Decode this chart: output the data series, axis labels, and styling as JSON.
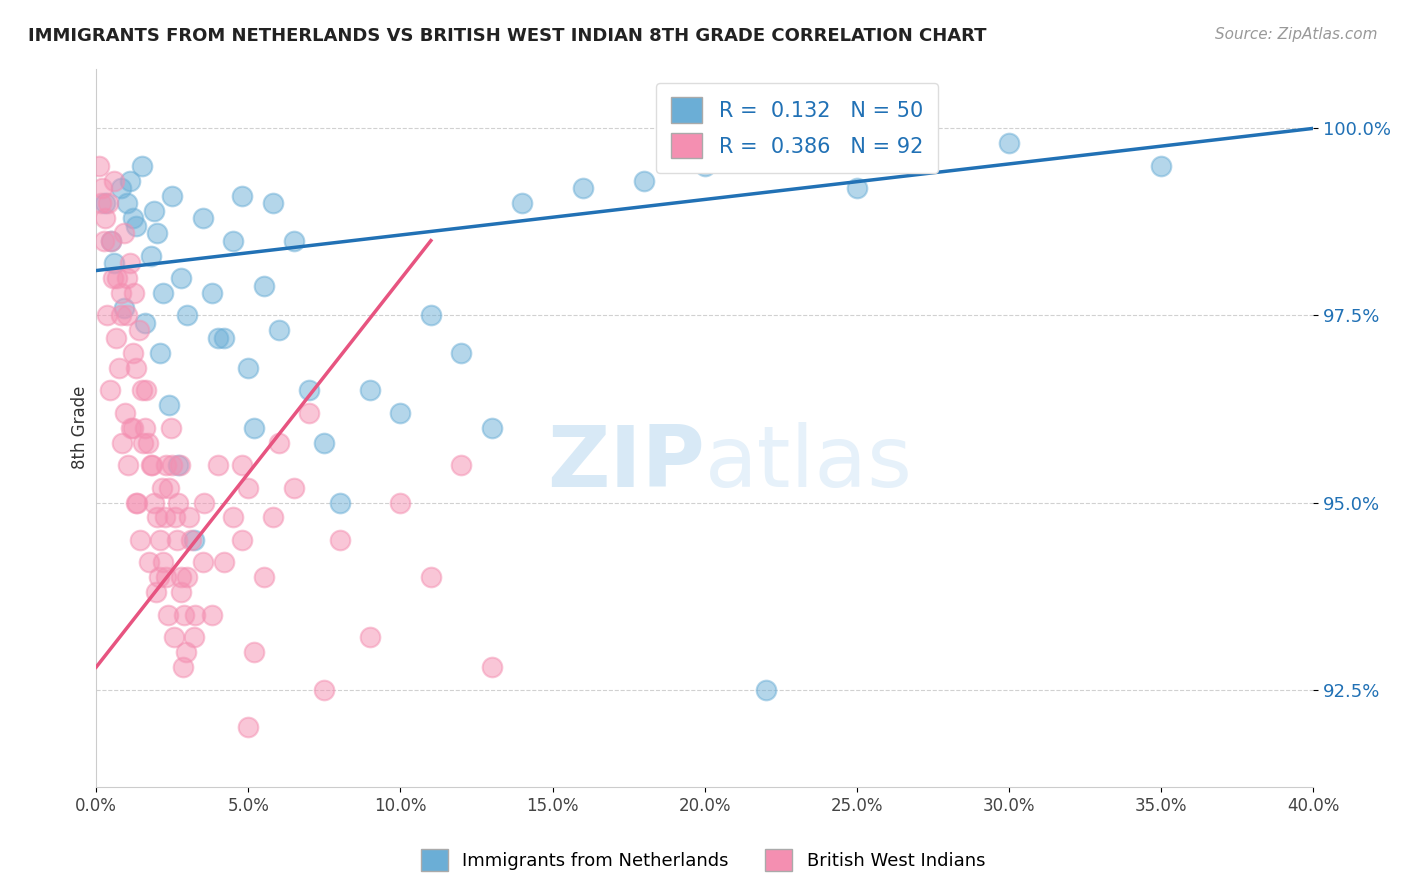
{
  "title": "IMMIGRANTS FROM NETHERLANDS VS BRITISH WEST INDIAN 8TH GRADE CORRELATION CHART",
  "source": "Source: ZipAtlas.com",
  "ylabel": "8th Grade",
  "y_ticks": [
    92.5,
    95.0,
    97.5,
    100.0
  ],
  "x_min": 0.0,
  "x_max": 40.0,
  "y_min": 91.2,
  "y_max": 100.8,
  "blue_R": 0.132,
  "blue_N": 50,
  "pink_R": 0.386,
  "pink_N": 92,
  "blue_color": "#6baed6",
  "pink_color": "#f48fb1",
  "blue_line_color": "#2171b5",
  "pink_line_color": "#e75480",
  "watermark_zip": "ZIP",
  "watermark_atlas": "atlas",
  "legend_label_blue": "Immigrants from Netherlands",
  "legend_label_pink": "British West Indians",
  "blue_scatter_x": [
    0.5,
    0.8,
    1.0,
    1.2,
    1.5,
    1.8,
    2.0,
    2.2,
    2.5,
    2.8,
    3.0,
    3.5,
    4.0,
    4.5,
    5.0,
    5.5,
    6.0,
    7.0,
    8.0,
    10.0,
    12.0,
    14.0,
    18.0,
    20.0,
    25.0,
    30.0,
    0.3,
    0.6,
    0.9,
    1.1,
    1.3,
    1.6,
    1.9,
    2.1,
    2.4,
    2.7,
    3.2,
    3.8,
    4.2,
    4.8,
    5.2,
    5.8,
    6.5,
    7.5,
    9.0,
    11.0,
    13.0,
    16.0,
    22.0,
    35.0
  ],
  "blue_scatter_y": [
    98.5,
    99.2,
    99.0,
    98.8,
    99.5,
    98.3,
    98.6,
    97.8,
    99.1,
    98.0,
    97.5,
    98.8,
    97.2,
    98.5,
    96.8,
    97.9,
    97.3,
    96.5,
    95.0,
    96.2,
    97.0,
    99.0,
    99.3,
    99.5,
    99.2,
    99.8,
    99.0,
    98.2,
    97.6,
    99.3,
    98.7,
    97.4,
    98.9,
    97.0,
    96.3,
    95.5,
    94.5,
    97.8,
    97.2,
    99.1,
    96.0,
    99.0,
    98.5,
    95.8,
    96.5,
    97.5,
    96.0,
    99.2,
    92.5,
    99.5
  ],
  "pink_scatter_x": [
    0.1,
    0.2,
    0.3,
    0.4,
    0.5,
    0.6,
    0.7,
    0.8,
    0.9,
    1.0,
    1.1,
    1.2,
    1.3,
    1.4,
    1.5,
    1.6,
    1.7,
    1.8,
    1.9,
    2.0,
    2.1,
    2.2,
    2.3,
    2.4,
    2.5,
    2.6,
    2.7,
    2.8,
    2.9,
    3.0,
    3.1,
    3.2,
    3.5,
    3.8,
    4.0,
    4.5,
    5.0,
    5.5,
    6.0,
    7.0,
    8.0,
    10.0,
    12.0,
    0.15,
    0.25,
    0.35,
    0.45,
    0.55,
    0.65,
    0.75,
    0.85,
    0.95,
    1.05,
    1.15,
    1.25,
    1.35,
    1.45,
    1.55,
    1.65,
    1.75,
    1.85,
    1.95,
    2.05,
    2.15,
    2.25,
    2.35,
    2.45,
    2.55,
    2.65,
    2.75,
    2.85,
    2.95,
    3.05,
    3.25,
    3.55,
    4.2,
    4.8,
    5.2,
    5.8,
    6.5,
    7.5,
    9.0,
    11.0,
    13.0,
    1.3,
    2.8,
    5.0,
    1.0,
    2.3,
    4.8,
    0.8,
    1.2
  ],
  "pink_scatter_y": [
    99.5,
    99.2,
    98.8,
    99.0,
    98.5,
    99.3,
    98.0,
    97.8,
    98.6,
    97.5,
    98.2,
    97.0,
    96.8,
    97.3,
    96.5,
    96.0,
    95.8,
    95.5,
    95.0,
    94.8,
    94.5,
    94.2,
    94.0,
    95.2,
    95.5,
    94.8,
    95.0,
    93.8,
    93.5,
    94.0,
    94.5,
    93.2,
    94.2,
    93.5,
    95.5,
    94.8,
    95.2,
    94.0,
    95.8,
    96.2,
    94.5,
    95.0,
    95.5,
    99.0,
    98.5,
    97.5,
    96.5,
    98.0,
    97.2,
    96.8,
    95.8,
    96.2,
    95.5,
    96.0,
    97.8,
    95.0,
    94.5,
    95.8,
    96.5,
    94.2,
    95.5,
    93.8,
    94.0,
    95.2,
    94.8,
    93.5,
    96.0,
    93.2,
    94.5,
    95.5,
    92.8,
    93.0,
    94.8,
    93.5,
    95.0,
    94.2,
    95.5,
    93.0,
    94.8,
    95.2,
    92.5,
    93.2,
    94.0,
    92.8,
    95.0,
    94.0,
    92.0,
    98.0,
    95.5,
    94.5,
    97.5,
    96.0
  ],
  "blue_line_x": [
    0.0,
    40.0
  ],
  "blue_line_y": [
    98.1,
    100.0
  ],
  "pink_line_x": [
    0.0,
    11.0
  ],
  "pink_line_y": [
    92.8,
    98.5
  ]
}
